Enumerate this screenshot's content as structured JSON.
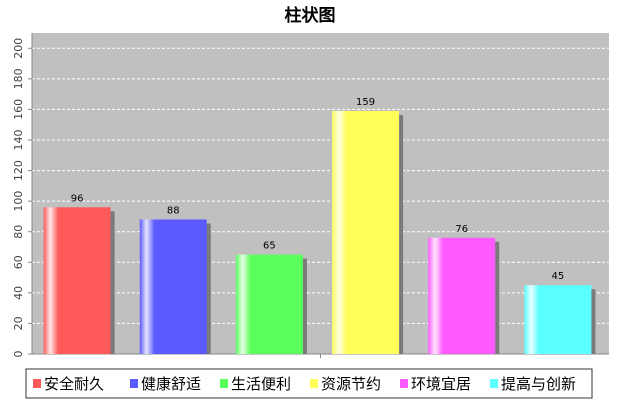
{
  "chart_data": {
    "type": "bar",
    "title": "柱状图",
    "xlabel": "",
    "ylabel": "",
    "categories": [
      "安全耐久",
      "健康舒适",
      "生活便利",
      "资源节约",
      "环境宜居",
      "提高与创新"
    ],
    "series": [
      {
        "values": [
          96,
          88,
          65,
          159,
          76,
          45
        ]
      }
    ],
    "ylim": [
      0,
      210
    ],
    "yticks": [
      0,
      20,
      40,
      60,
      80,
      100,
      120,
      140,
      160,
      180,
      200
    ],
    "colors": [
      "#ff5a5a",
      "#5a5aff",
      "#5aff5a",
      "#ffff5a",
      "#ff5aff",
      "#5affff"
    ],
    "plot_background": "#c0c0c0",
    "grid": true,
    "legend_placement": "bottom",
    "data_labels": true
  }
}
